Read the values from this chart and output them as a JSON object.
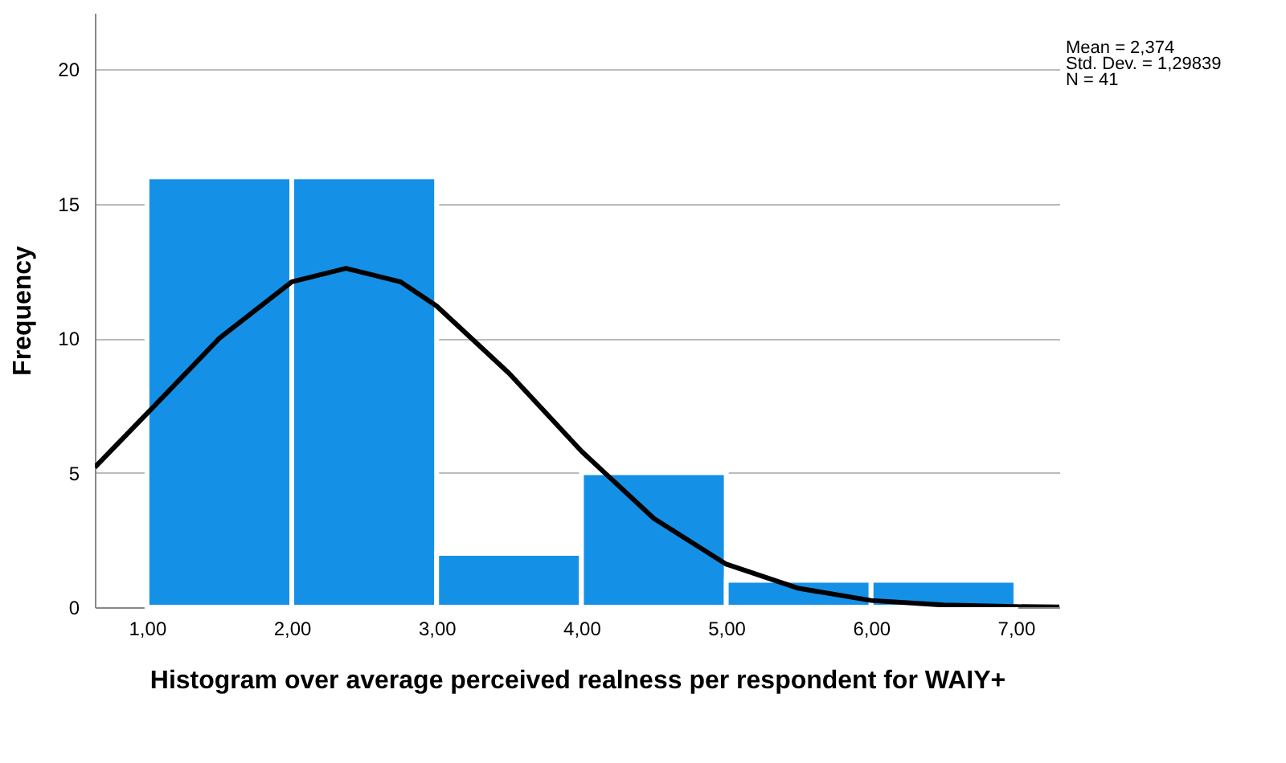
{
  "chart_data": {
    "type": "histogram",
    "xlabel": "Histogram over average perceived realness per respondent for WAIY+",
    "ylabel": "Frequency",
    "series": [
      {
        "color": "#1491e6",
        "bins": [
          1,
          2,
          3,
          4,
          5,
          6,
          7
        ],
        "values": [
          16,
          16,
          2,
          5,
          1,
          1
        ]
      },
      {
        "type": "line",
        "color": "#000000",
        "x": [
          0.64,
          1.0,
          1.5,
          2.0,
          2.374,
          2.75,
          3.0,
          3.5,
          4.0,
          4.5,
          5.0,
          5.5,
          6.0,
          6.5,
          7.0,
          7.3
        ],
        "values": [
          5.2,
          7.2,
          10.0,
          12.1,
          12.6,
          12.1,
          11.2,
          8.7,
          5.8,
          3.3,
          1.6,
          0.7,
          0.25,
          0.08,
          0.02,
          0.01
        ]
      }
    ],
    "xlim": [
      0.64,
      7.3
    ],
    "xticks": [
      {
        "value": 1,
        "label": "1,00"
      },
      {
        "value": 2,
        "label": "2,00"
      },
      {
        "value": 3,
        "label": "3,00"
      },
      {
        "value": 4,
        "label": "4,00"
      },
      {
        "value": 5,
        "label": "5,00"
      },
      {
        "value": 6,
        "label": "6,00"
      },
      {
        "value": 7,
        "label": "7,00"
      }
    ],
    "ylim": [
      0,
      22.1
    ],
    "yticks": [
      0,
      5,
      10,
      15,
      20
    ],
    "grid": "y",
    "legend": false,
    "annotations": [
      "Mean = 2,374",
      "Std. Dev. = 1,29839",
      "N = 41"
    ]
  }
}
